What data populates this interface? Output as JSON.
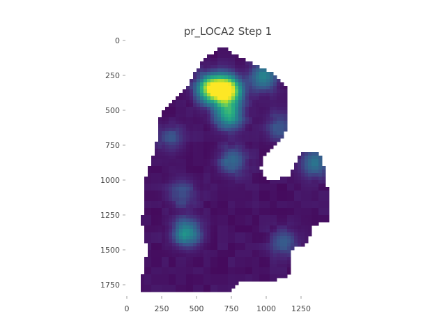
{
  "chart_data": {
    "type": "heatmap",
    "title": "pr_LOCA2 Step 1",
    "xlabel": "",
    "ylabel": "",
    "xlim": [
      0,
      1450
    ],
    "ylim": [
      1825,
      0
    ],
    "x_ticks": [
      0,
      250,
      500,
      750,
      1000,
      1250
    ],
    "y_ticks": [
      0,
      250,
      500,
      750,
      1000,
      1250,
      1500,
      1750
    ],
    "x_tick_labels": [
      "0",
      "250",
      "500",
      "750",
      "1000",
      "1250"
    ],
    "y_tick_labels": [
      "0",
      "250",
      "500",
      "750",
      "1000",
      "1250",
      "1500",
      "1750"
    ],
    "colormap": "viridis",
    "colorbar": false,
    "grid": false,
    "background_value": 0.05,
    "hotspots": [
      {
        "x": 600,
        "y": 345,
        "value": 0.8
      },
      {
        "x": 720,
        "y": 355,
        "value": 0.98
      },
      {
        "x": 730,
        "y": 530,
        "value": 0.55
      },
      {
        "x": 980,
        "y": 260,
        "value": 0.4
      },
      {
        "x": 760,
        "y": 860,
        "value": 0.3
      },
      {
        "x": 430,
        "y": 1380,
        "value": 0.45
      },
      {
        "x": 1350,
        "y": 880,
        "value": 0.32
      },
      {
        "x": 400,
        "y": 1100,
        "value": 0.2
      },
      {
        "x": 1130,
        "y": 1450,
        "value": 0.22
      },
      {
        "x": 320,
        "y": 700,
        "value": 0.18
      },
      {
        "x": 1100,
        "y": 620,
        "value": 0.22
      }
    ],
    "region_outline": [
      [
        680,
        40
      ],
      [
        800,
        110
      ],
      [
        920,
        180
      ],
      [
        1050,
        230
      ],
      [
        1150,
        330
      ],
      [
        1160,
        500
      ],
      [
        1140,
        650
      ],
      [
        1060,
        760
      ],
      [
        990,
        830
      ],
      [
        960,
        920
      ],
      [
        1010,
        1000
      ],
      [
        1160,
        980
      ],
      [
        1240,
        810
      ],
      [
        1320,
        790
      ],
      [
        1400,
        830
      ],
      [
        1430,
        980
      ],
      [
        1450,
        1150
      ],
      [
        1440,
        1290
      ],
      [
        1340,
        1320
      ],
      [
        1300,
        1450
      ],
      [
        1180,
        1500
      ],
      [
        1180,
        1680
      ],
      [
        1000,
        1730
      ],
      [
        800,
        1730
      ],
      [
        720,
        1810
      ],
      [
        100,
        1810
      ],
      [
        110,
        1700
      ],
      [
        150,
        1500
      ],
      [
        110,
        1300
      ],
      [
        130,
        1000
      ],
      [
        200,
        800
      ],
      [
        240,
        540
      ],
      [
        320,
        440
      ],
      [
        450,
        300
      ],
      [
        520,
        180
      ],
      [
        600,
        100
      ],
      [
        680,
        40
      ]
    ]
  }
}
